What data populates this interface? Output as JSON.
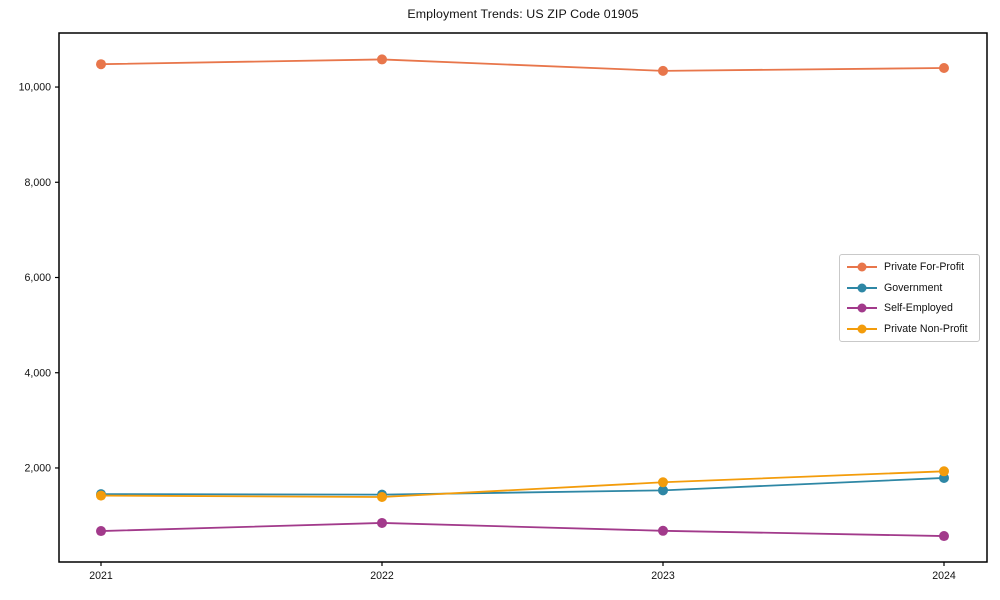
{
  "figure": {
    "background": "#ffffff",
    "axis_color": "#000000",
    "legend_border_color": "#c9c9c9"
  },
  "chart_data": {
    "type": "line",
    "title": "Employment Trends: US ZIP Code 01905",
    "x_categories": [
      "2021",
      "2022",
      "2023",
      "2024"
    ],
    "series": [
      {
        "name": "Private For-Profit",
        "color": "#e8764b",
        "values": [
          10480,
          10580,
          10340,
          10400
        ]
      },
      {
        "name": "Government",
        "color": "#2e87a5",
        "values": [
          1450,
          1440,
          1530,
          1790
        ]
      },
      {
        "name": "Self-Employed",
        "color": "#a23a8b",
        "values": [
          675,
          845,
          680,
          570
        ]
      },
      {
        "name": "Private Non-Profit",
        "color": "#f39c0b",
        "values": [
          1420,
          1390,
          1700,
          1930
        ]
      }
    ],
    "y_ticks": [
      {
        "value": 2000,
        "label": "2,000"
      },
      {
        "value": 4000,
        "label": "4,000"
      },
      {
        "value": 6000,
        "label": "6,000"
      },
      {
        "value": 8000,
        "label": "8,000"
      },
      {
        "value": 10000,
        "label": "10,000"
      }
    ],
    "ylim": [
      25,
      11135
    ],
    "grid": false,
    "legend_position": "center right",
    "marker": "circle"
  }
}
